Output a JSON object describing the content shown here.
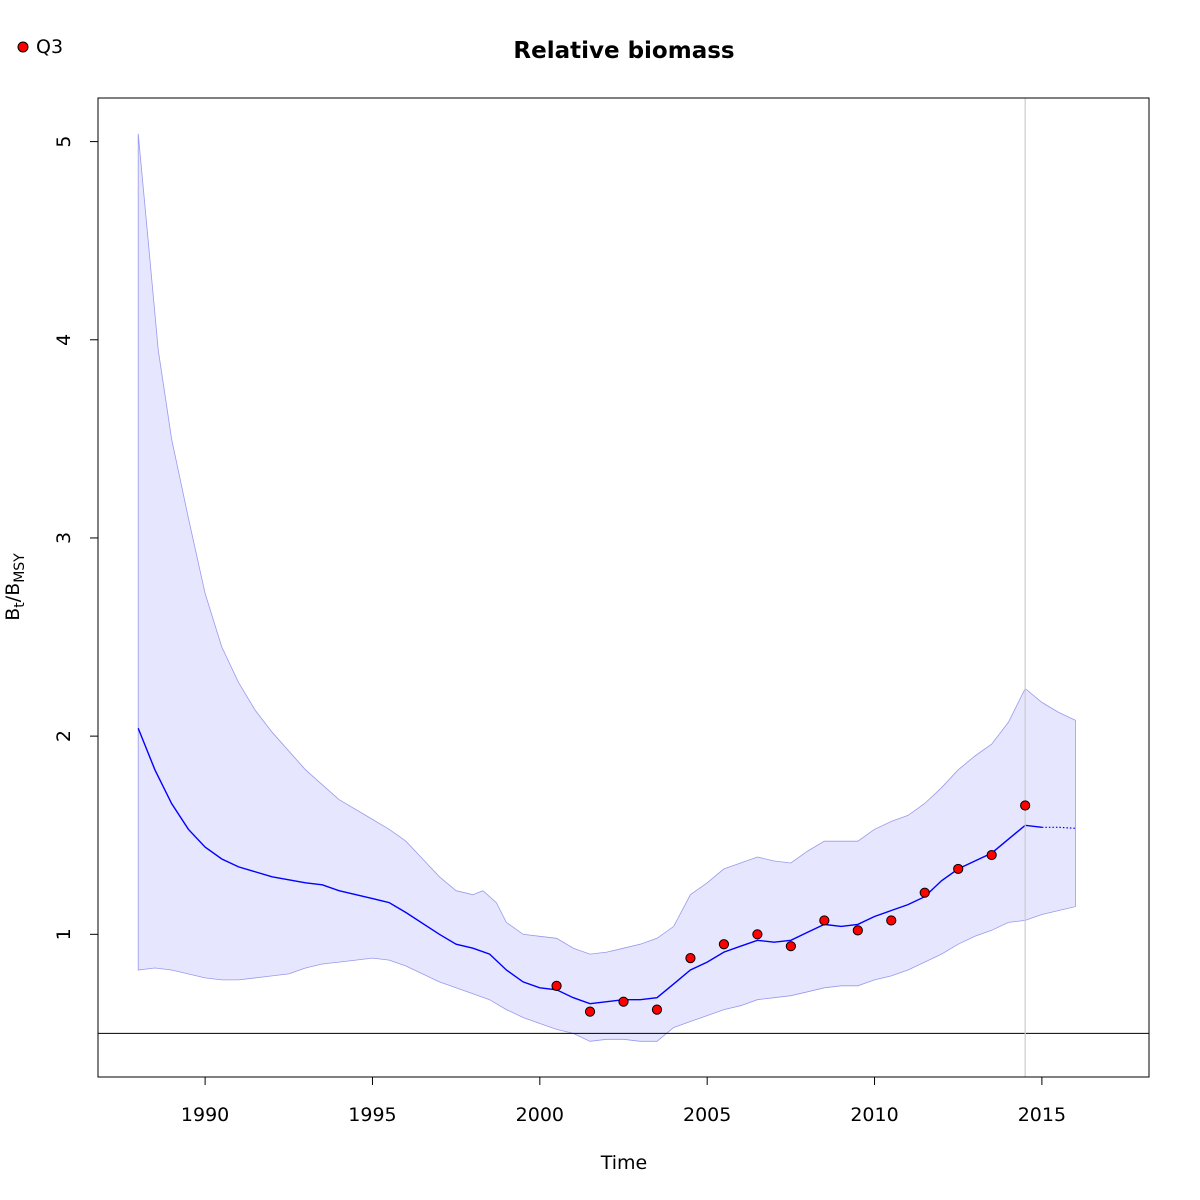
{
  "chart_data": {
    "type": "line",
    "title": "Relative biomass",
    "xlabel": "Time",
    "ylabel": {
      "base": "B",
      "sub1": "t",
      "sep": "/B",
      "sub2": "MSY"
    },
    "xlim": [
      1986.8,
      2018.2
    ],
    "ylim": [
      0.28,
      5.22
    ],
    "xticks": [
      1990,
      1995,
      2000,
      2005,
      2010,
      2015
    ],
    "yticks": [
      1,
      2,
      3,
      4,
      5
    ],
    "legend": {
      "position": "top-left",
      "entries": [
        {
          "label": "Q3",
          "color": "#ff0000"
        }
      ]
    },
    "reference_line_y": 0.5,
    "vertical_line_x": 2014.5,
    "colors": {
      "estimate": "#0000ff",
      "ci_fill": "#e6e6ff",
      "ci_edge": "#9999ee",
      "points": "#ff0000",
      "vline": "#cccccc"
    },
    "series": [
      {
        "name": "estimate",
        "x": [
          1988.0,
          1988.5,
          1989.0,
          1989.5,
          1990.0,
          1990.5,
          1991.0,
          1992.0,
          1993.0,
          1993.5,
          1994.0,
          1995.0,
          1995.5,
          1996.0,
          1997.0,
          1997.5,
          1998.0,
          1998.5,
          1999.0,
          1999.5,
          2000.0,
          2000.5,
          2001.0,
          2001.5,
          2002.0,
          2002.5,
          2003.0,
          2003.5,
          2004.0,
          2004.5,
          2005.0,
          2005.5,
          2006.0,
          2006.5,
          2007.0,
          2007.5,
          2008.0,
          2008.5,
          2009.0,
          2009.5,
          2010.0,
          2010.5,
          2011.0,
          2011.5,
          2012.0,
          2012.5,
          2013.0,
          2013.5,
          2014.0,
          2014.5,
          2015.0
        ],
        "values": [
          2.04,
          1.83,
          1.66,
          1.53,
          1.44,
          1.38,
          1.34,
          1.29,
          1.26,
          1.25,
          1.22,
          1.18,
          1.16,
          1.11,
          1.0,
          0.95,
          0.93,
          0.9,
          0.82,
          0.76,
          0.73,
          0.72,
          0.68,
          0.65,
          0.66,
          0.67,
          0.67,
          0.68,
          0.75,
          0.82,
          0.86,
          0.91,
          0.94,
          0.97,
          0.96,
          0.97,
          1.01,
          1.05,
          1.04,
          1.05,
          1.09,
          1.12,
          1.15,
          1.19,
          1.27,
          1.33,
          1.37,
          1.41,
          1.48,
          1.55,
          1.54
        ]
      },
      {
        "name": "projection",
        "x": [
          2015.0,
          2015.5,
          2016.0
        ],
        "values": [
          1.54,
          1.54,
          1.535
        ]
      },
      {
        "name": "upper",
        "x": [
          1988.0,
          1988.3,
          1988.6,
          1989.0,
          1989.5,
          1990.0,
          1990.5,
          1991.0,
          1991.5,
          1992.0,
          1993.0,
          1994.0,
          1995.0,
          1995.5,
          1996.0,
          1996.5,
          1997.0,
          1997.5,
          1998.0,
          1998.3,
          1998.7,
          1999.0,
          1999.5,
          2000.0,
          2000.5,
          2001.0,
          2001.5,
          2002.0,
          2002.5,
          2003.0,
          2003.5,
          2004.0,
          2004.5,
          2005.0,
          2005.5,
          2006.0,
          2006.5,
          2007.0,
          2007.5,
          2008.0,
          2008.5,
          2009.0,
          2009.5,
          2010.0,
          2010.5,
          2011.0,
          2011.5,
          2012.0,
          2012.5,
          2013.0,
          2013.5,
          2014.0,
          2014.5,
          2015.0,
          2015.5,
          2016.0
        ],
        "values": [
          5.04,
          4.5,
          3.95,
          3.5,
          3.1,
          2.72,
          2.45,
          2.27,
          2.13,
          2.02,
          1.83,
          1.68,
          1.58,
          1.53,
          1.47,
          1.38,
          1.29,
          1.22,
          1.2,
          1.22,
          1.16,
          1.06,
          1.0,
          0.99,
          0.98,
          0.93,
          0.9,
          0.91,
          0.93,
          0.95,
          0.98,
          1.04,
          1.2,
          1.26,
          1.33,
          1.36,
          1.39,
          1.37,
          1.36,
          1.42,
          1.47,
          1.47,
          1.47,
          1.53,
          1.57,
          1.6,
          1.66,
          1.74,
          1.83,
          1.9,
          1.96,
          2.07,
          2.24,
          2.17,
          2.12,
          2.08
        ]
      },
      {
        "name": "lower",
        "x": [
          1988.0,
          1988.5,
          1989.0,
          1990.0,
          1990.5,
          1991.0,
          1992.0,
          1992.5,
          1993.0,
          1993.5,
          1994.0,
          1995.0,
          1995.5,
          1996.0,
          1997.0,
          1998.0,
          1998.5,
          1999.0,
          1999.5,
          2000.0,
          2000.5,
          2001.0,
          2001.5,
          2002.0,
          2002.5,
          2003.0,
          2003.5,
          2004.0,
          2004.5,
          2005.0,
          2005.5,
          2006.0,
          2006.5,
          2007.0,
          2007.5,
          2008.0,
          2008.5,
          2009.0,
          2009.5,
          2010.0,
          2010.5,
          2011.0,
          2011.5,
          2012.0,
          2012.5,
          2013.0,
          2013.5,
          2014.0,
          2014.5,
          2015.0,
          2016.0
        ],
        "values": [
          0.82,
          0.83,
          0.82,
          0.78,
          0.77,
          0.77,
          0.79,
          0.8,
          0.83,
          0.85,
          0.86,
          0.88,
          0.87,
          0.84,
          0.76,
          0.7,
          0.67,
          0.62,
          0.58,
          0.55,
          0.52,
          0.5,
          0.46,
          0.47,
          0.47,
          0.46,
          0.46,
          0.53,
          0.56,
          0.59,
          0.62,
          0.64,
          0.67,
          0.68,
          0.69,
          0.71,
          0.73,
          0.74,
          0.74,
          0.77,
          0.79,
          0.82,
          0.86,
          0.9,
          0.95,
          0.99,
          1.02,
          1.06,
          1.07,
          1.1,
          1.14
        ]
      },
      {
        "name": "Q3",
        "type": "scatter",
        "x": [
          2000.5,
          2001.5,
          2002.5,
          2003.5,
          2004.5,
          2005.5,
          2006.5,
          2007.5,
          2008.5,
          2009.5,
          2010.5,
          2011.5,
          2012.5,
          2013.5,
          2014.5
        ],
        "values": [
          0.74,
          0.61,
          0.66,
          0.62,
          0.88,
          0.95,
          1.0,
          0.94,
          1.07,
          1.02,
          1.07,
          1.21,
          1.33,
          1.4,
          1.65
        ]
      }
    ]
  }
}
